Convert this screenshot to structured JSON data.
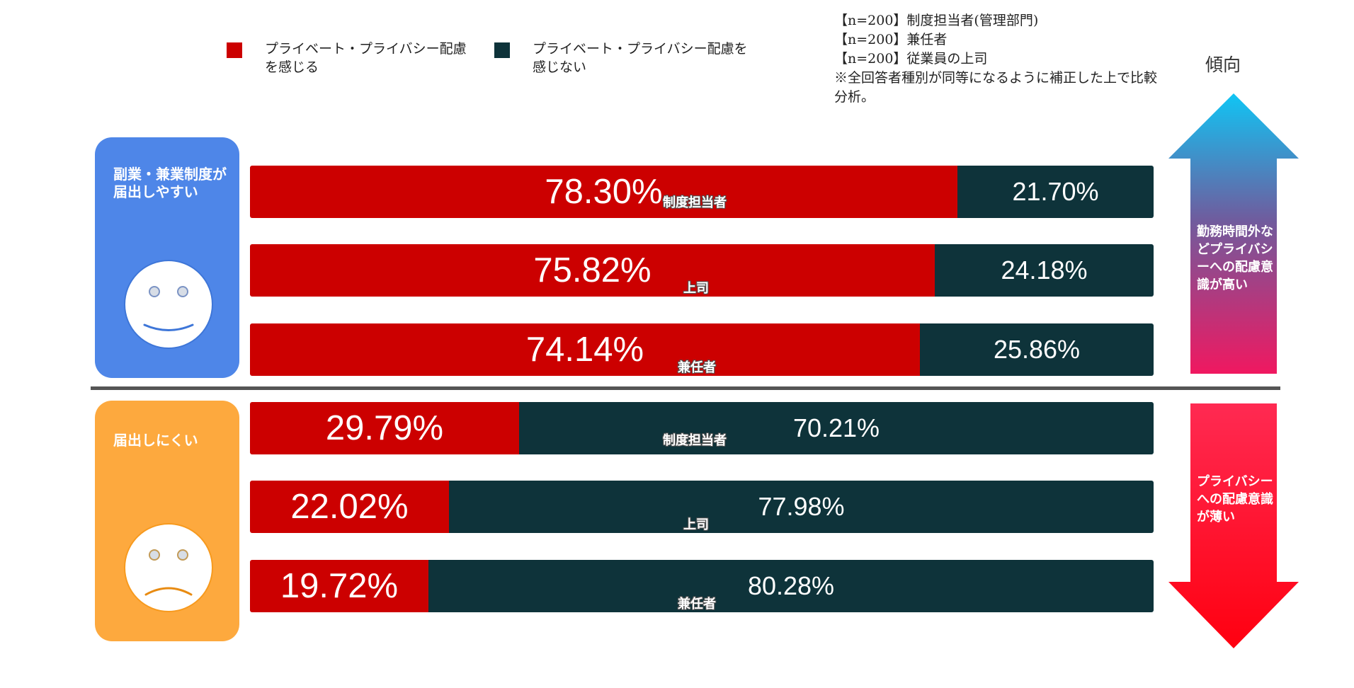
{
  "legend": {
    "positive": {
      "label": "プライベート・プライバシー配慮を感じる",
      "color": "#CC0000"
    },
    "negative": {
      "label": "プライベート・プライバシー配慮を感じない",
      "color": "#0E333A"
    }
  },
  "notes": [
    "【n=200】制度担当者(管理部門)",
    "【n=200】兼任者",
    "【n=200】従業員の上司",
    "※全回答者種別が同等になるように補正した上で比較分析。"
  ],
  "trend": {
    "title": "傾向",
    "up_label": "勤務時間外などプライバシーへの配慮意識が高い",
    "down_label": "プライバシーへの配慮意識が薄い"
  },
  "groups": [
    {
      "label": "副業・兼業制度が届出しやすい",
      "color": "#4E86E8",
      "face": "smile-face-icon"
    },
    {
      "label": "届出しにくい",
      "color": "#FDA93E",
      "face": "sad-face-icon"
    }
  ],
  "chart_data": {
    "type": "bar",
    "orientation": "horizontal",
    "stacked": true,
    "normalized_100": true,
    "series": [
      {
        "name": "プライベート・プライバシー配慮を感じる",
        "color": "#CC0000",
        "values": [
          78.3,
          75.82,
          74.14,
          29.79,
          22.02,
          19.72
        ],
        "labels": [
          "78.30%",
          "75.82%",
          "74.14%",
          "29.79%",
          "22.02%",
          "19.72%"
        ]
      },
      {
        "name": "プライベート・プライバシー配慮を感じない",
        "color": "#0E333A",
        "values": [
          21.7,
          24.18,
          25.86,
          70.21,
          77.98,
          80.28
        ],
        "labels": [
          "21.70%",
          "24.18%",
          "25.86%",
          "70.21%",
          "77.98%",
          "80.28%"
        ]
      }
    ],
    "rows": [
      {
        "group": "副業・兼業制度が届出しやすい",
        "respondent": "制度担当者"
      },
      {
        "group": "副業・兼業制度が届出しやすい",
        "respondent": "上司"
      },
      {
        "group": "副業・兼業制度が届出しやすい",
        "respondent": "兼任者"
      },
      {
        "group": "届出しにくい",
        "respondent": "制度担当者"
      },
      {
        "group": "届出しにくい",
        "respondent": "上司"
      },
      {
        "group": "届出しにくい",
        "respondent": "兼任者"
      }
    ]
  }
}
